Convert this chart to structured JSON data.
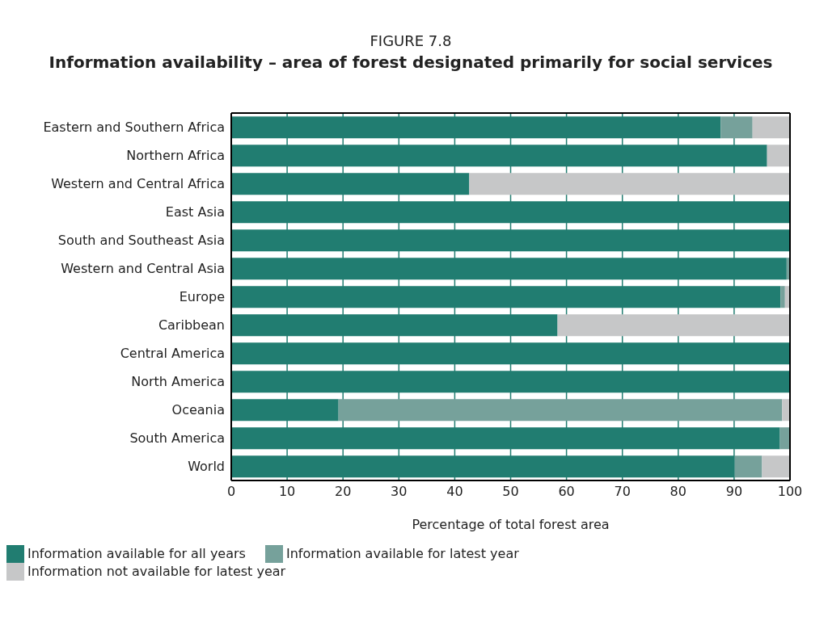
{
  "chart_data": {
    "type": "bar",
    "orientation": "horizontal",
    "stacked": true,
    "title": "FIGURE 7.8",
    "subtitle": "Information availability – area of forest designated primarily for social services",
    "xlabel": "Percentage of total forest area",
    "categories": [
      "Eastern and Southern Africa",
      "Northern Africa",
      "Western and Central Africa",
      "East Asia",
      "South and Southeast Asia",
      "Western and Central Asia",
      "Europe",
      "Caribbean",
      "Central America",
      "North America",
      "Oceania",
      "South America",
      "World"
    ],
    "series": [
      {
        "name": "Information available for all years",
        "color": "#217d71",
        "values": [
          87.6,
          95.9,
          42.6,
          100,
          100,
          99.4,
          98.3,
          58.4,
          100,
          100,
          19.2,
          98.2,
          90.1
        ]
      },
      {
        "name": "Information available for latest year",
        "color": "#76a19b",
        "values": [
          5.7,
          0,
          0,
          0,
          0,
          0.6,
          0.8,
          0,
          0,
          0,
          79.4,
          1.8,
          4.9
        ]
      },
      {
        "name": "Information not available for latest year",
        "color": "#c6c7c8",
        "values": [
          6.7,
          4.1,
          57.4,
          0,
          0,
          0,
          0.9,
          41.6,
          0,
          0,
          1.4,
          0,
          5.0
        ]
      }
    ],
    "xlim": [
      0,
      100
    ],
    "xticks": [
      0,
      10,
      20,
      30,
      40,
      50,
      60,
      70,
      80,
      90,
      100
    ],
    "grid": "x",
    "legend": "bottom"
  }
}
